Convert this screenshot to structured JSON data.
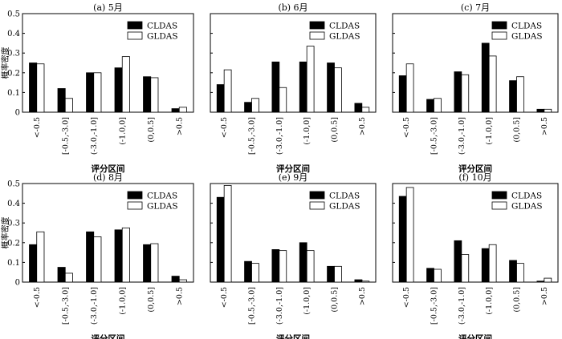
{
  "chart_data": [
    {
      "type": "bar",
      "title": "(a) 5月",
      "categories": [
        "<-0.5",
        "[-0.5,-3.0]",
        "(-3.0,-1.0]",
        "(-1.0,0]",
        "(0,0.5]",
        ">0.5"
      ],
      "series": [
        {
          "name": "CLDAS",
          "values": [
            0.25,
            0.12,
            0.2,
            0.225,
            0.18,
            0.018
          ]
        },
        {
          "name": "GLDAS",
          "values": [
            0.245,
            0.07,
            0.2,
            0.282,
            0.175,
            0.025
          ]
        }
      ],
      "xlabel": "评分区间",
      "ylabel": "概率密度",
      "ylim": [
        0,
        0.5
      ],
      "yticks": [
        "0",
        "0.1",
        "0.2",
        "0.3",
        "0.4",
        "0.5"
      ],
      "legend": "top-right"
    },
    {
      "type": "bar",
      "title": "(b) 6月",
      "categories": [
        "<-0.5",
        "[-0.5,-3.0]",
        "(-3.0,-1.0]",
        "(-1.0,0]",
        "(0,0.5]",
        ">0.5"
      ],
      "series": [
        {
          "name": "CLDAS",
          "values": [
            0.14,
            0.05,
            0.255,
            0.255,
            0.25,
            0.045
          ]
        },
        {
          "name": "GLDAS",
          "values": [
            0.215,
            0.07,
            0.125,
            0.335,
            0.225,
            0.025
          ]
        }
      ],
      "xlabel": "评分区间",
      "ylabel": "",
      "ylim": [
        0,
        0.5
      ],
      "yticks": [],
      "legend": "top-right"
    },
    {
      "type": "bar",
      "title": "(c) 7月",
      "categories": [
        "<-0.5",
        "[-0.5,-3.0]",
        "(-3.0,-1.0]",
        "(-1.0,0]",
        "(0,0.5]",
        ">0.5"
      ],
      "series": [
        {
          "name": "CLDAS",
          "values": [
            0.185,
            0.065,
            0.205,
            0.35,
            0.16,
            0.015
          ]
        },
        {
          "name": "GLDAS",
          "values": [
            0.245,
            0.07,
            0.19,
            0.285,
            0.18,
            0.015
          ]
        }
      ],
      "xlabel": "评分区间",
      "ylabel": "",
      "ylim": [
        0,
        0.5
      ],
      "yticks": [],
      "legend": "top-right"
    },
    {
      "type": "bar",
      "title": "(d) 8月",
      "categories": [
        "<-0.5",
        "[-0.5,-3.0]",
        "(-3.0,-1.0]",
        "(-1.0,0]",
        "(0,0.5]",
        ">0.5"
      ],
      "series": [
        {
          "name": "CLDAS",
          "values": [
            0.19,
            0.075,
            0.255,
            0.265,
            0.19,
            0.03
          ]
        },
        {
          "name": "GLDAS",
          "values": [
            0.255,
            0.045,
            0.23,
            0.275,
            0.195,
            0.012
          ]
        }
      ],
      "xlabel": "评分区间",
      "ylabel": "概率密度",
      "ylim": [
        0,
        0.5
      ],
      "yticks": [
        "0",
        "0.1",
        "0.2",
        "0.3",
        "0.4",
        "0.5"
      ],
      "legend": "top-right"
    },
    {
      "type": "bar",
      "title": "(e) 9月",
      "categories": [
        "<-0.5",
        "[-0.5,-3.0]",
        "(-3.0,-1.0]",
        "(-1.0,0]",
        "(0,0.5]",
        ">0.5"
      ],
      "series": [
        {
          "name": "CLDAS",
          "values": [
            0.43,
            0.105,
            0.165,
            0.2,
            0.08,
            0.012
          ]
        },
        {
          "name": "GLDAS",
          "values": [
            0.49,
            0.095,
            0.16,
            0.16,
            0.08,
            0.005
          ]
        }
      ],
      "xlabel": "评分区间",
      "ylabel": "",
      "ylim": [
        0,
        0.5
      ],
      "yticks": [],
      "legend": "top-right"
    },
    {
      "type": "bar",
      "title": "(f) 10月",
      "categories": [
        "<-0.5",
        "[-0.5,-3.0]",
        "(-3.0,-1.0]",
        "(-1.0,0]",
        "(0,0.5]",
        ">0.5"
      ],
      "series": [
        {
          "name": "CLDAS",
          "values": [
            0.435,
            0.07,
            0.21,
            0.17,
            0.11,
            0.005
          ]
        },
        {
          "name": "GLDAS",
          "values": [
            0.48,
            0.065,
            0.14,
            0.19,
            0.095,
            0.02
          ]
        }
      ],
      "xlabel": "评分区间",
      "ylabel": "",
      "ylim": [
        0,
        0.5
      ],
      "yticks": [],
      "legend": "top-right"
    }
  ],
  "colors": {
    "CLDAS": "#000000",
    "GLDAS": "#ffffff",
    "axis": "#000000"
  }
}
